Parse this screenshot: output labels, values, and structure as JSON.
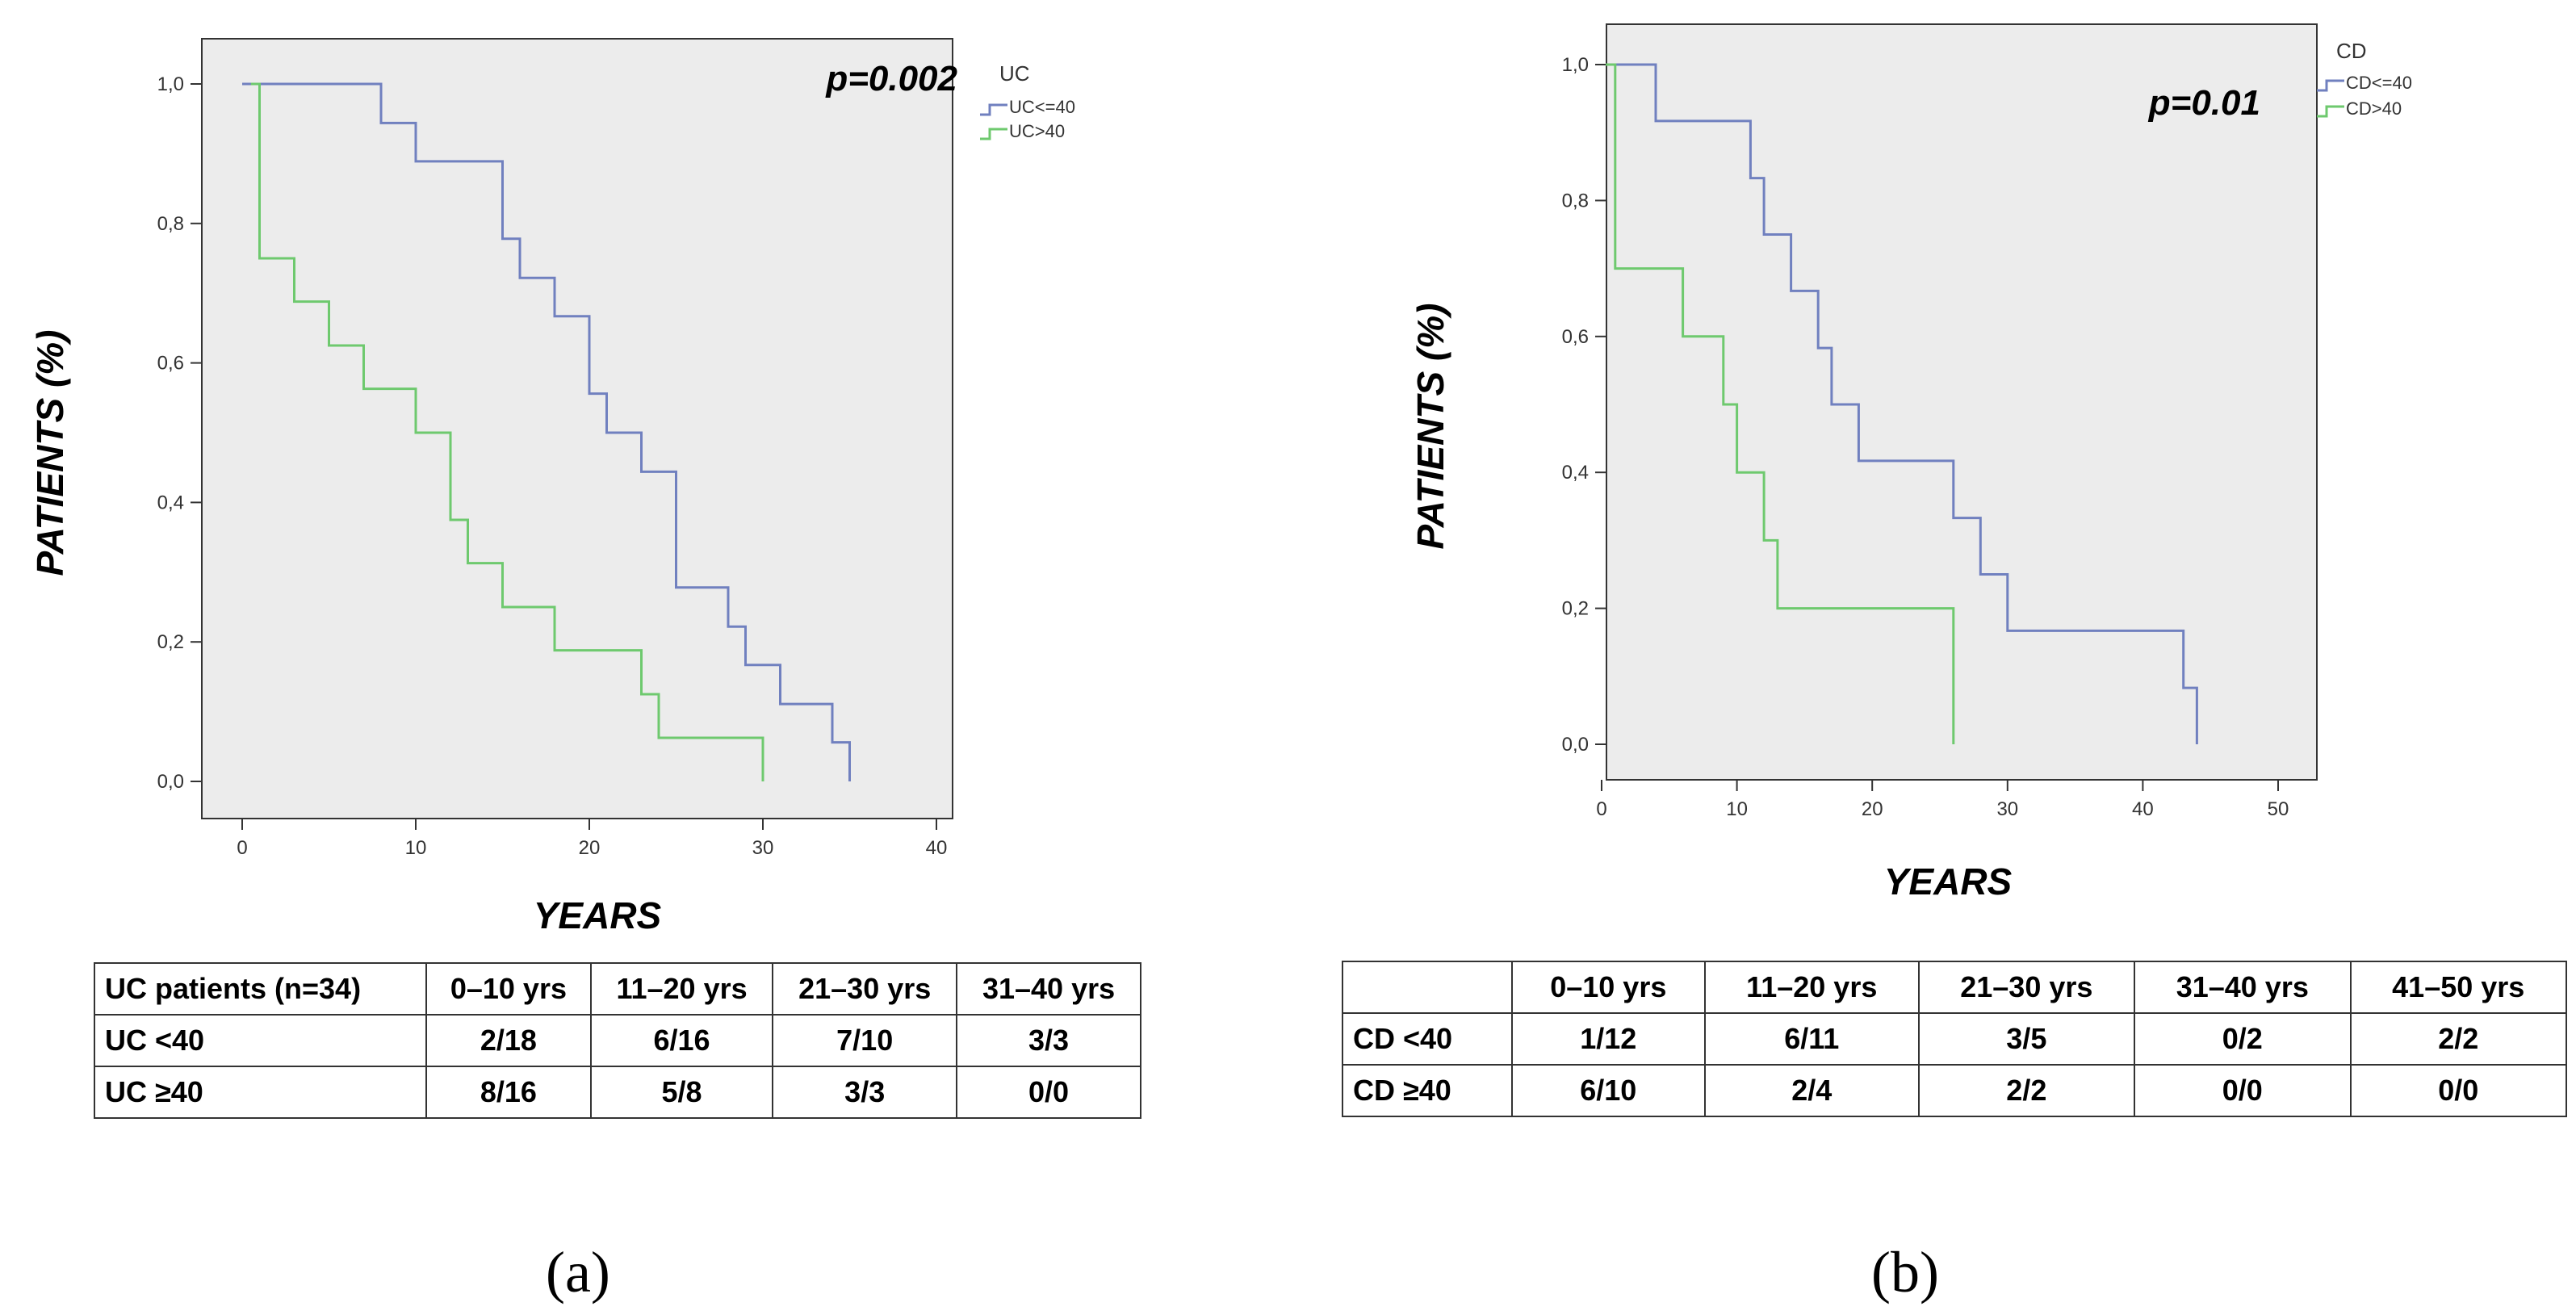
{
  "chart_data": [
    {
      "type": "line",
      "panel_label": "(a)",
      "legend_title": "UC",
      "legend_placement": "top-right, outside plot",
      "annotation": "p=0.002",
      "xlabel": "YEARS",
      "ylabel": "PATIENTS (%)",
      "xlim": [
        0,
        40
      ],
      "ylim": [
        0,
        1
      ],
      "x_ticks": [
        "0",
        "10",
        "20",
        "30",
        "40"
      ],
      "y_ticks": [
        "0,0",
        "0,2",
        "0,4",
        "0,6",
        "0,8",
        "1,0"
      ],
      "grid": false,
      "step": true,
      "series": [
        {
          "name": "UC<=40",
          "color": "#7080bf",
          "points": [
            [
              0,
              1.0
            ],
            [
              8,
              1.0
            ],
            [
              8,
              0.944
            ],
            [
              10,
              0.944
            ],
            [
              10,
              0.889
            ],
            [
              15,
              0.889
            ],
            [
              15,
              0.778
            ],
            [
              16,
              0.778
            ],
            [
              16,
              0.722
            ],
            [
              18,
              0.722
            ],
            [
              18,
              0.667
            ],
            [
              20,
              0.667
            ],
            [
              20,
              0.556
            ],
            [
              21,
              0.556
            ],
            [
              21,
              0.5
            ],
            [
              23,
              0.5
            ],
            [
              23,
              0.444
            ],
            [
              25,
              0.444
            ],
            [
              25,
              0.278
            ],
            [
              28,
              0.278
            ],
            [
              28,
              0.222
            ],
            [
              29,
              0.222
            ],
            [
              29,
              0.167
            ],
            [
              31,
              0.167
            ],
            [
              31,
              0.111
            ],
            [
              34,
              0.111
            ],
            [
              34,
              0.056
            ],
            [
              35,
              0.056
            ],
            [
              35,
              0.0
            ]
          ]
        },
        {
          "name": "UC>40",
          "color": "#6ec96e",
          "points": [
            [
              0.5,
              1.0
            ],
            [
              1,
              1.0
            ],
            [
              1,
              0.75
            ],
            [
              3,
              0.75
            ],
            [
              3,
              0.688
            ],
            [
              5,
              0.688
            ],
            [
              5,
              0.625
            ],
            [
              7,
              0.625
            ],
            [
              7,
              0.563
            ],
            [
              10,
              0.563
            ],
            [
              10,
              0.5
            ],
            [
              12,
              0.5
            ],
            [
              12,
              0.375
            ],
            [
              13,
              0.375
            ],
            [
              13,
              0.313
            ],
            [
              15,
              0.313
            ],
            [
              15,
              0.25
            ],
            [
              18,
              0.25
            ],
            [
              18,
              0.188
            ],
            [
              23,
              0.188
            ],
            [
              23,
              0.125
            ],
            [
              24,
              0.125
            ],
            [
              24,
              0.0625
            ],
            [
              30,
              0.0625
            ],
            [
              30,
              0.0
            ]
          ]
        }
      ],
      "risk_table": {
        "corner": "UC patients (n=34)",
        "columns": [
          "0–10 yrs",
          "11–20 yrs",
          "21–30 yrs",
          "31–40 yrs"
        ],
        "rows": [
          {
            "label": "UC <40",
            "values": [
              "2/18",
              "6/16",
              "7/10",
              "3/3"
            ]
          },
          {
            "label": "UC ≥40",
            "values": [
              "8/16",
              "5/8",
              "3/3",
              "0/0"
            ]
          }
        ]
      }
    },
    {
      "type": "line",
      "panel_label": "(b)",
      "legend_title": "CD",
      "legend_placement": "top-right, outside plot",
      "annotation": "p=0.01",
      "xlabel": "YEARS",
      "ylabel": "PATIENTS (%)",
      "xlim": [
        0,
        50
      ],
      "ylim": [
        0,
        1
      ],
      "x_ticks": [
        "0",
        "10",
        "20",
        "30",
        "40",
        "50"
      ],
      "y_ticks": [
        "0,0",
        "0,2",
        "0,4",
        "0,6",
        "0,8",
        "1,0"
      ],
      "grid": false,
      "step": true,
      "series": [
        {
          "name": "CD<=40",
          "color": "#7080bf",
          "points": [
            [
              0.5,
              1.0
            ],
            [
              4,
              1.0
            ],
            [
              4,
              0.917
            ],
            [
              11,
              0.917
            ],
            [
              11,
              0.833
            ],
            [
              12,
              0.833
            ],
            [
              12,
              0.75
            ],
            [
              14,
              0.75
            ],
            [
              14,
              0.667
            ],
            [
              16,
              0.667
            ],
            [
              16,
              0.583
            ],
            [
              17,
              0.583
            ],
            [
              17,
              0.5
            ],
            [
              19,
              0.5
            ],
            [
              19,
              0.417
            ],
            [
              26,
              0.417
            ],
            [
              26,
              0.333
            ],
            [
              28,
              0.333
            ],
            [
              28,
              0.25
            ],
            [
              30,
              0.25
            ],
            [
              30,
              0.167
            ],
            [
              43,
              0.167
            ],
            [
              43,
              0.083
            ],
            [
              44,
              0.083
            ],
            [
              44,
              0.0
            ]
          ]
        },
        {
          "name": "CD>40",
          "color": "#6ec96e",
          "points": [
            [
              0.3,
              1.0
            ],
            [
              1,
              1.0
            ],
            [
              1,
              0.7
            ],
            [
              6,
              0.7
            ],
            [
              6,
              0.6
            ],
            [
              9,
              0.6
            ],
            [
              9,
              0.5
            ],
            [
              10,
              0.5
            ],
            [
              10,
              0.4
            ],
            [
              12,
              0.4
            ],
            [
              12,
              0.3
            ],
            [
              13,
              0.3
            ],
            [
              13,
              0.2
            ],
            [
              26,
              0.2
            ],
            [
              26,
              0.0
            ]
          ]
        }
      ],
      "risk_table": {
        "corner": "",
        "columns": [
          "0–10 yrs",
          "11–20 yrs",
          "21–30 yrs",
          "31–40 yrs",
          "41–50 yrs"
        ],
        "rows": [
          {
            "label": "CD <40",
            "values": [
              "1/12",
              "6/11",
              "3/5",
              "0/2",
              "2/2"
            ]
          },
          {
            "label": "CD ≥40",
            "values": [
              "6/10",
              "2/4",
              "2/2",
              "0/0",
              "0/0"
            ]
          }
        ]
      }
    }
  ]
}
